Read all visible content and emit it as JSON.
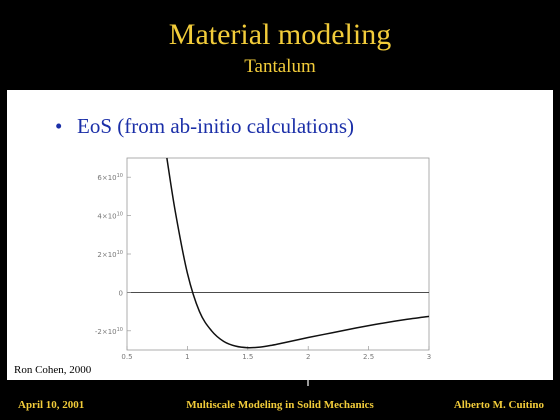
{
  "slide": {
    "title": "Material modeling",
    "subtitle": "Tantalum",
    "bullet": "EoS (from ab-initio calculations)",
    "credit": "Ron Cohen, 2000"
  },
  "footer": {
    "date": "April 10, 2001",
    "center": "Multiscale Modeling in Solid Mechanics",
    "author": "Alberto M. Cuitino"
  },
  "colors": {
    "background": "#000000",
    "title": "#f2cc3a",
    "bullet": "#1b2fa8"
  },
  "chart_data": {
    "type": "line",
    "x_ticks": [
      "0.5",
      "1",
      "1.5",
      "2",
      "2.5",
      "3"
    ],
    "y_ticks": [
      {
        "mantissa": "6",
        "exponent": "10"
      },
      {
        "mantissa": "4",
        "exponent": "10"
      },
      {
        "mantissa": "2",
        "exponent": "10"
      },
      {
        "mantissa": "0",
        "exponent": ""
      },
      {
        "mantissa": "-2",
        "exponent": "10"
      }
    ],
    "xlim": [
      0.5,
      3.0
    ],
    "ylim": [
      -30000000000.0,
      70000000000.0
    ],
    "series": [
      {
        "x": [
          0.83,
          0.9,
          1.0,
          1.1,
          1.2,
          1.3,
          1.4,
          1.5,
          1.6,
          1.7,
          1.8,
          2.0,
          2.2,
          2.4,
          2.6,
          2.8,
          3.0
        ],
        "y": [
          70000000000.0,
          42000000000.0,
          10000000000.0,
          -10000000000.0,
          -20000000000.0,
          -25500000000.0,
          -28000000000.0,
          -28800000000.0,
          -28500000000.0,
          -27500000000.0,
          -26200000000.0,
          -23500000000.0,
          -21000000000.0,
          -18500000000.0,
          -16200000000.0,
          -14200000000.0,
          -12500000000.0
        ]
      }
    ],
    "zero_line": true
  }
}
